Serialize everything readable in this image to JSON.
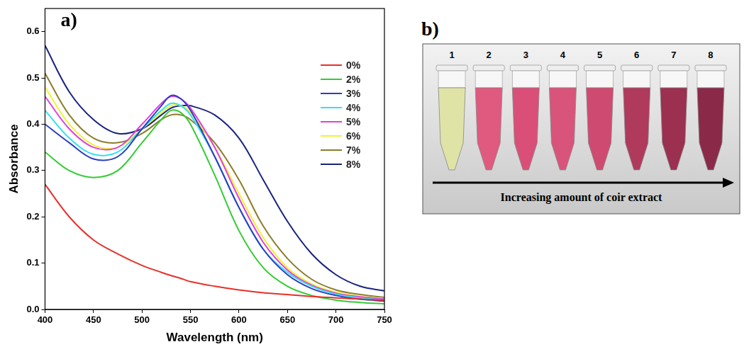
{
  "chart_data": {
    "type": "line",
    "panel_label": "a)",
    "x_label": "Wavelength (nm)",
    "y_label": "Absorbance",
    "x": [
      400,
      425,
      450,
      475,
      500,
      520,
      530,
      540,
      550,
      575,
      600,
      625,
      650,
      675,
      700,
      725,
      750
    ],
    "series": [
      {
        "name": "0%",
        "color": "#e8302a",
        "values": [
          0.27,
          0.2,
          0.15,
          0.12,
          0.095,
          0.08,
          0.073,
          0.067,
          0.06,
          0.05,
          0.042,
          0.036,
          0.032,
          0.028,
          0.025,
          0.022,
          0.02
        ]
      },
      {
        "name": "2%",
        "color": "#33cc33",
        "values": [
          0.34,
          0.3,
          0.285,
          0.3,
          0.36,
          0.41,
          0.43,
          0.425,
          0.4,
          0.29,
          0.17,
          0.09,
          0.05,
          0.03,
          0.02,
          0.015,
          0.012
        ]
      },
      {
        "name": "3%",
        "color": "#2e3dbf",
        "values": [
          0.4,
          0.36,
          0.325,
          0.33,
          0.39,
          0.44,
          0.462,
          0.455,
          0.43,
          0.33,
          0.22,
          0.13,
          0.075,
          0.045,
          0.03,
          0.022,
          0.018
        ]
      },
      {
        "name": "4%",
        "color": "#33e0f0",
        "values": [
          0.43,
          0.37,
          0.335,
          0.34,
          0.39,
          0.43,
          0.445,
          0.44,
          0.42,
          0.33,
          0.22,
          0.13,
          0.08,
          0.05,
          0.033,
          0.025,
          0.02
        ]
      },
      {
        "name": "5%",
        "color": "#e040e0",
        "values": [
          0.46,
          0.39,
          0.35,
          0.35,
          0.4,
          0.445,
          0.46,
          0.455,
          0.435,
          0.35,
          0.24,
          0.145,
          0.085,
          0.052,
          0.035,
          0.027,
          0.022
        ]
      },
      {
        "name": "6%",
        "color": "#f2f230",
        "values": [
          0.48,
          0.4,
          0.355,
          0.35,
          0.39,
          0.425,
          0.44,
          0.44,
          0.425,
          0.35,
          0.25,
          0.155,
          0.09,
          0.055,
          0.037,
          0.028,
          0.023
        ]
      },
      {
        "name": "7%",
        "color": "#8b7d2a",
        "values": [
          0.51,
          0.42,
          0.37,
          0.36,
          0.38,
          0.41,
          0.42,
          0.42,
          0.41,
          0.36,
          0.28,
          0.18,
          0.11,
          0.065,
          0.042,
          0.032,
          0.026
        ]
      },
      {
        "name": "8%",
        "color": "#1a237e",
        "values": [
          0.57,
          0.47,
          0.41,
          0.38,
          0.39,
          0.42,
          0.435,
          0.44,
          0.44,
          0.42,
          0.37,
          0.28,
          0.19,
          0.12,
          0.075,
          0.05,
          0.04
        ]
      }
    ],
    "xlim": [
      400,
      750
    ],
    "xticks": [
      400,
      450,
      500,
      550,
      600,
      650,
      700,
      750
    ],
    "ylim": [
      0,
      0.65
    ],
    "yticks": [
      {
        "value": 0,
        "label": "0.0"
      },
      0.1,
      0.2,
      0.3,
      0.4,
      0.5,
      0.6
    ],
    "grid": false,
    "legend": "upper right"
  },
  "photo": {
    "panel_label": "b)",
    "tube_labels": [
      "1",
      "2",
      "3",
      "4",
      "5",
      "6",
      "7",
      "8"
    ],
    "colors": [
      "#dfe3a6",
      "#e0597f",
      "#d94f78",
      "#d9547a",
      "#cf4a70",
      "#b03a5c",
      "#9c3050",
      "#8a2a48"
    ],
    "caption": "Increasing amount of coir extract"
  }
}
